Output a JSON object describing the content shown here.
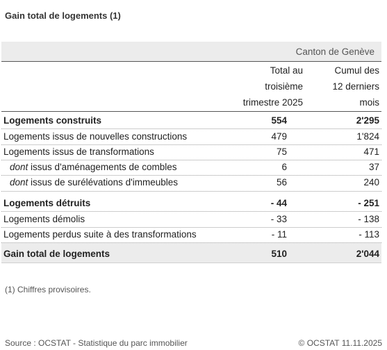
{
  "title": "Gain total de logements (1)",
  "region": "Canton de Genève",
  "columns": {
    "col1": [
      "Total au",
      "troisième",
      "trimestre 2025"
    ],
    "col2": [
      "Cumul des",
      "12 derniers",
      "mois"
    ]
  },
  "rows": [
    {
      "label": "Logements construits",
      "v1": "554",
      "v2": "2'295"
    },
    {
      "label": "Logements issus de nouvelles constructions",
      "v1": "479",
      "v2": "1'824"
    },
    {
      "label": "Logements issus de transformations",
      "v1": "75",
      "v2": "471"
    },
    {
      "prefix": "dont",
      "label": "issus d'aménagements de combles",
      "v1": "6",
      "v2": "37"
    },
    {
      "prefix": "dont",
      "label": "issus de surélévations d'immeubles",
      "v1": "56",
      "v2": "240"
    },
    {
      "label": "Logements détruits",
      "v1": "- 44",
      "v2": "- 251"
    },
    {
      "label": "Logements démolis",
      "v1": "- 33",
      "v2": "- 138"
    },
    {
      "label": "Logements perdus suite à des transformations",
      "v1": "- 11",
      "v2": "- 113"
    },
    {
      "label": "Gain total de logements",
      "v1": "510",
      "v2": "2'044"
    }
  ],
  "note": "(1) Chiffres provisoires.",
  "source": "Source : OCSTAT - Statistique du parc immobilier",
  "copyright": "© OCSTAT 11.11.2025"
}
